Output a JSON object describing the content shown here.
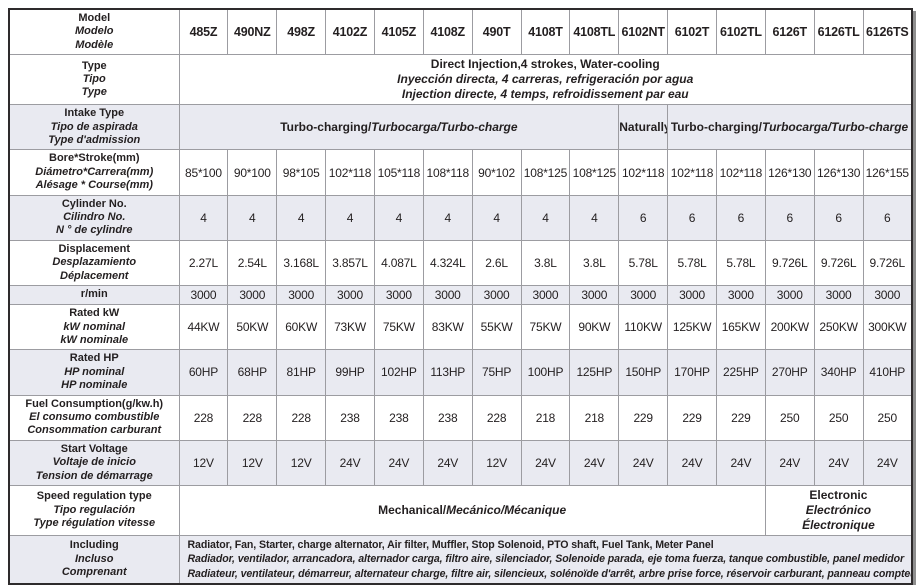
{
  "table": {
    "colors": {
      "shaded_row_bg": "#e9eaf1",
      "cell_border": "#9c9ca1",
      "outer_border": "#2e2b2c",
      "text": "#231f20",
      "shadow": "#8f8f8f"
    },
    "column_count": 15,
    "rows": [
      {
        "key": "model",
        "shaded": false,
        "bold_values": true,
        "label": [
          {
            "t": "Model"
          },
          {
            "t": "Modelo",
            "i": true
          },
          {
            "t": "Modèle",
            "i": true
          }
        ],
        "values": [
          "485Z",
          "490NZ",
          "498Z",
          "4102Z",
          "4105Z",
          "4108Z",
          "490T",
          "4108T",
          "4108TL",
          "6102NT",
          "6102T",
          "6102TL",
          "6126T",
          "6126TL",
          "6126TS"
        ]
      },
      {
        "key": "type",
        "shaded": false,
        "label": [
          {
            "t": "Type"
          },
          {
            "t": "Tipo",
            "i": true
          },
          {
            "t": "Type",
            "i": true
          }
        ],
        "cells": [
          {
            "colspan": 15,
            "lines": [
              [
                {
                  "t": "Direct Injection,4 strokes, Water-cooling"
                }
              ],
              [
                {
                  "t": "Inyección directa, 4 carreras, refrigeración por agua",
                  "i": true
                }
              ],
              [
                {
                  "t": "Injection directe, 4 temps, refroidissement par eau",
                  "i": true
                }
              ]
            ]
          }
        ]
      },
      {
        "key": "intake",
        "shaded": true,
        "label": [
          {
            "t": "Intake Type"
          },
          {
            "t": "Tipo de aspirada",
            "i": true
          },
          {
            "t": "Type d'admission",
            "i": true
          }
        ],
        "cells": [
          {
            "colspan": 9,
            "lines": [
              [
                {
                  "t": "Turbo-charging/"
                },
                {
                  "t": "Turbocarga/Turbo-charge",
                  "i": true
                }
              ]
            ]
          },
          {
            "colspan": 1,
            "lines": [
              [
                {
                  "t": "Naturally"
                }
              ]
            ]
          },
          {
            "colspan": 5,
            "lines": [
              [
                {
                  "t": "Turbo-charging/"
                },
                {
                  "t": "Turbocarga/Turbo-charge",
                  "i": true
                }
              ]
            ]
          }
        ]
      },
      {
        "key": "bore",
        "shaded": false,
        "bold_values": false,
        "label": [
          {
            "t": "Bore*Stroke(mm)"
          },
          {
            "t": "Diámetro*Carrera(mm)",
            "i": true
          },
          {
            "t": "Alésage * Course(mm)",
            "i": true
          }
        ],
        "values": [
          "85*100",
          "90*100",
          "98*105",
          "102*118",
          "105*118",
          "108*118",
          "90*102",
          "108*125",
          "108*125",
          "102*118",
          "102*118",
          "102*118",
          "126*130",
          "126*130",
          "126*155"
        ]
      },
      {
        "key": "cylinder",
        "shaded": true,
        "bold_values": false,
        "label": [
          {
            "t": "Cylinder No."
          },
          {
            "t": "Cilindro No.",
            "i": true
          },
          {
            "t": "N ° de cylindre",
            "i": true
          }
        ],
        "values": [
          "4",
          "4",
          "4",
          "4",
          "4",
          "4",
          "4",
          "4",
          "4",
          "6",
          "6",
          "6",
          "6",
          "6",
          "6"
        ]
      },
      {
        "key": "displacement",
        "shaded": false,
        "bold_values": false,
        "label": [
          {
            "t": "Displacement"
          },
          {
            "t": "Desplazamiento",
            "i": true
          },
          {
            "t": "Déplacement",
            "i": true
          }
        ],
        "values": [
          "2.27L",
          "2.54L",
          "3.168L",
          "3.857L",
          "4.087L",
          "4.324L",
          "2.6L",
          "3.8L",
          "3.8L",
          "5.78L",
          "5.78L",
          "5.78L",
          "9.726L",
          "9.726L",
          "9.726L"
        ]
      },
      {
        "key": "rpm",
        "shaded": true,
        "bold_values": false,
        "label": [
          {
            "t": "r/min"
          }
        ],
        "values": [
          "3000",
          "3000",
          "3000",
          "3000",
          "3000",
          "3000",
          "3000",
          "3000",
          "3000",
          "3000",
          "3000",
          "3000",
          "3000",
          "3000",
          "3000"
        ]
      },
      {
        "key": "rated-kw",
        "shaded": false,
        "bold_values": false,
        "label": [
          {
            "t": "Rated kW"
          },
          {
            "t": "kW nominal",
            "i": true
          },
          {
            "t": "kW nominale",
            "i": true
          }
        ],
        "values": [
          "44KW",
          "50KW",
          "60KW",
          "73KW",
          "75KW",
          "83KW",
          "55KW",
          "75KW",
          "90KW",
          "110KW",
          "125KW",
          "165KW",
          "200KW",
          "250KW",
          "300KW"
        ]
      },
      {
        "key": "rated-hp",
        "shaded": true,
        "bold_values": false,
        "label": [
          {
            "t": "Rated HP"
          },
          {
            "t": "HP nominal",
            "i": true
          },
          {
            "t": "HP nominale",
            "i": true
          }
        ],
        "values": [
          "60HP",
          "68HP",
          "81HP",
          "99HP",
          "102HP",
          "113HP",
          "75HP",
          "100HP",
          "125HP",
          "150HP",
          "170HP",
          "225HP",
          "270HP",
          "340HP",
          "410HP"
        ]
      },
      {
        "key": "fuel",
        "shaded": false,
        "bold_values": false,
        "label": [
          {
            "t": "Fuel Consumption(g/kw.h)"
          },
          {
            "t": "El consumo combustible",
            "i": true
          },
          {
            "t": "Consommation carburant",
            "i": true
          }
        ],
        "values": [
          "228",
          "228",
          "228",
          "238",
          "238",
          "238",
          "228",
          "218",
          "218",
          "229",
          "229",
          "229",
          "250",
          "250",
          "250"
        ]
      },
      {
        "key": "voltage",
        "shaded": true,
        "bold_values": false,
        "label": [
          {
            "t": "Start Voltage"
          },
          {
            "t": "Voltaje de inicio",
            "i": true
          },
          {
            "t": "Tension de démarrage",
            "i": true
          }
        ],
        "values": [
          "12V",
          "12V",
          "12V",
          "24V",
          "24V",
          "24V",
          "12V",
          "24V",
          "24V",
          "24V",
          "24V",
          "24V",
          "24V",
          "24V",
          "24V"
        ]
      },
      {
        "key": "speed-regulation",
        "shaded": false,
        "label": [
          {
            "t": "Speed regulation type"
          },
          {
            "t": "Tipo regulación",
            "i": true
          },
          {
            "t": "Type régulation vitesse",
            "i": true
          }
        ],
        "cells": [
          {
            "colspan": 12,
            "lines": [
              [
                {
                  "t": "Mechanical/"
                },
                {
                  "t": "Mecánico/Mécanique",
                  "i": true
                }
              ]
            ]
          },
          {
            "colspan": 3,
            "lines": [
              [
                {
                  "t": "Electronic"
                }
              ],
              [
                {
                  "t": "Electrónico",
                  "i": true
                }
              ],
              [
                {
                  "t": "Électronique",
                  "i": true
                }
              ]
            ]
          }
        ]
      },
      {
        "key": "including",
        "shaded": true,
        "label": [
          {
            "t": "Including"
          },
          {
            "t": "Incluso",
            "i": true
          },
          {
            "t": "Comprenant",
            "i": true
          }
        ],
        "cells": [
          {
            "colspan": 15,
            "align": "left",
            "cls": "small",
            "lines": [
              [
                {
                  "t": "Radiator, Fan, Starter, charge alternator, Air filter, Muffler, Stop Solenoid, PTO shaft, Fuel Tank, Meter Panel"
                }
              ],
              [
                {
                  "t": "Radiador, ventilador, arrancadora, alternador carga, filtro aire, silenciador, Solenoide parada, eje toma fuerza, tanque combustible, panel medidor",
                  "i": true
                }
              ],
              [
                {
                  "t": "Radiateur, ventilateur, démarreur, alternateur charge, filtre air, silencieux, solénoïde d'arrêt, arbre prise force, réservoir carburant, panneau compteur",
                  "i": true
                }
              ]
            ]
          }
        ]
      }
    ]
  }
}
